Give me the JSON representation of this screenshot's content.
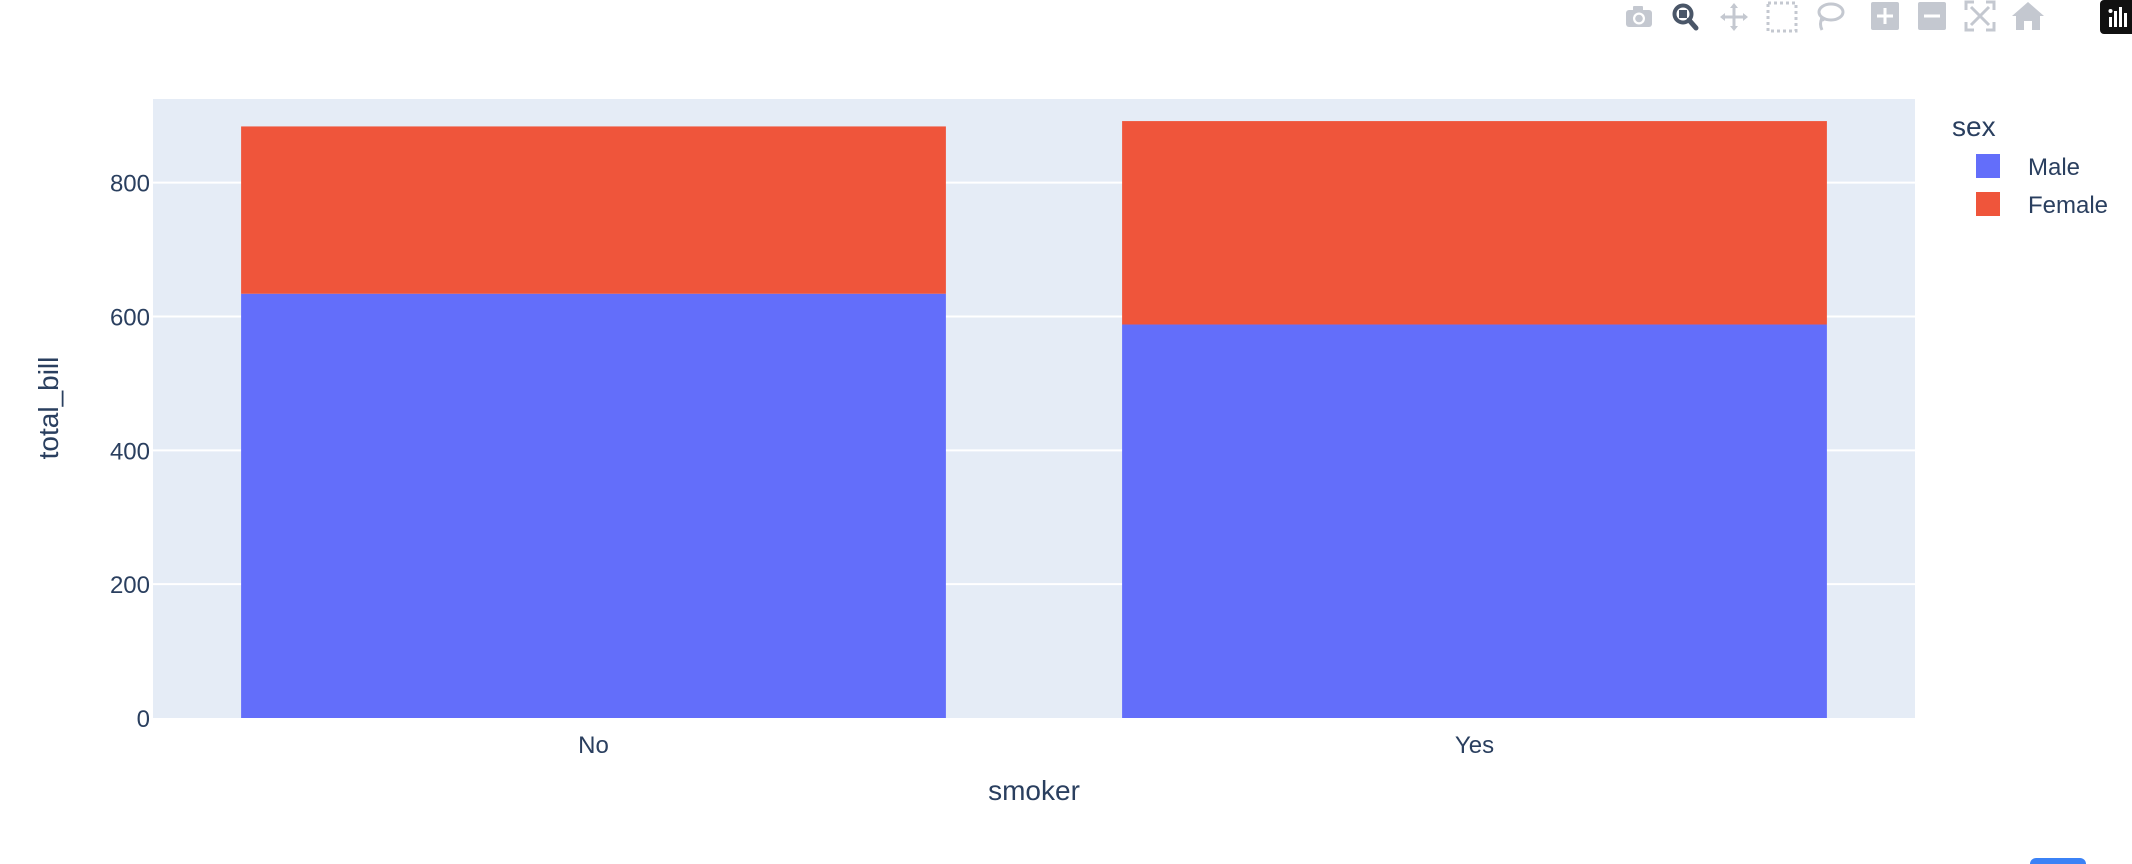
{
  "toolbar": {
    "buttons": [
      {
        "icon": "camera-icon",
        "title": "Download plot as a png"
      },
      {
        "icon": "zoom-icon",
        "title": "Zoom"
      },
      {
        "icon": "pan-icon",
        "title": "Pan"
      },
      {
        "icon": "box-select-icon",
        "title": "Box Select"
      },
      {
        "icon": "lasso-select-icon",
        "title": "Lasso Select"
      },
      {
        "icon": "zoom-in-icon",
        "title": "Zoom in"
      },
      {
        "icon": "zoom-out-icon",
        "title": "Zoom out"
      },
      {
        "icon": "autoscale-icon",
        "title": "Autoscale"
      },
      {
        "icon": "reset-axes-icon",
        "title": "Reset axes"
      },
      {
        "icon": "plotly-logo-icon",
        "title": ""
      }
    ],
    "active_button": "zoom-icon"
  },
  "chart_data": {
    "type": "bar",
    "barmode": "stack",
    "title": "",
    "xlabel": "smoker",
    "ylabel": "total_bill",
    "categories": [
      "No",
      "Yes"
    ],
    "ylim": [
      0,
      925
    ],
    "yticks": [
      0,
      200,
      400,
      600,
      800
    ],
    "grid": true,
    "legend_title": "sex",
    "legend_position": "top-right",
    "colors": {
      "Male": "#636efa",
      "Female": "#EF553B",
      "plot_bg": "#e5ecf6"
    },
    "series": [
      {
        "name": "Male",
        "values": [
          634,
          588
        ]
      },
      {
        "name": "Female",
        "values": [
          250,
          304
        ]
      }
    ]
  }
}
